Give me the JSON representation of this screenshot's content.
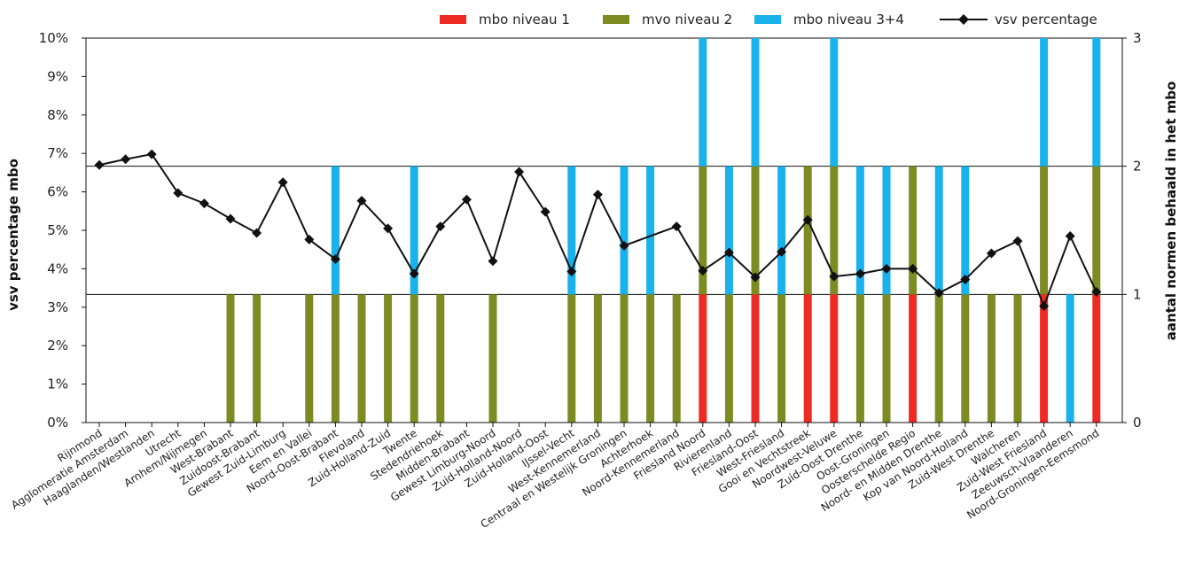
{
  "chart_data": {
    "type": "bar",
    "categories": [
      "Rijnmond",
      "Agglomeratie Amsterdam",
      "Haaglanden/Westlanden",
      "Utrecht",
      "Arnhem/Nijmegen",
      "West-Brabant",
      "Zuidoost-Brabant",
      "Gewest Zuid-Limburg",
      "Eem en Vallei",
      "Noord-Oost-Brabant",
      "Flevoland",
      "Zuid-Holland-Zuid",
      "Twente",
      "Stedendriehoek",
      "Midden-Brabant",
      "Gewest Limburg-Noord",
      "Zuid-Holland-Noord",
      "Zuid-Holland-Oost",
      "IJssel-Vecht",
      "West-Kennemerland",
      "Centraal en Westelijk Groningen",
      "Achterhoek",
      "Noord-Kennemerland",
      "Friesland Noord",
      "Rivierenland",
      "Friesland-Oost",
      "West-Friesland",
      "Gooi en Vechtstreek",
      "Noordwest-Veluwe",
      "Zuid-Oost Drenthe",
      "Oost-Groningen",
      "Oosterschelde Regio",
      "Noord- en Midden Drenthe",
      "Kop van Noord-Holland",
      "Zuid-West Drenthe",
      "Walcheren",
      "Zuid-West Friesland",
      "Zeeuwsch-Vlaanderen",
      "Noord-Groningen-Eemsmond"
    ],
    "series": [
      {
        "name": "mbo niveau 1",
        "axis": "right",
        "color": "#ee2a24",
        "values": [
          0,
          0,
          0,
          0,
          0,
          0,
          0,
          0,
          0,
          0,
          0,
          0,
          0,
          0,
          0,
          0,
          0,
          0,
          0,
          0,
          0,
          0,
          0,
          1,
          0,
          1,
          0,
          1,
          1,
          0,
          0,
          1,
          0,
          0,
          0,
          0,
          1,
          0,
          1
        ]
      },
      {
        "name": "mvo niveau 2",
        "axis": "right",
        "color": "#7d8b22",
        "values": [
          0,
          0,
          0,
          0,
          0,
          1,
          1,
          0,
          1,
          1,
          1,
          1,
          1,
          1,
          0,
          1,
          0,
          0,
          1,
          1,
          1,
          1,
          1,
          1,
          1,
          1,
          1,
          1,
          1,
          1,
          1,
          1,
          1,
          1,
          1,
          1,
          1,
          0,
          1
        ]
      },
      {
        "name": "mbo niveau 3+4",
        "axis": "right",
        "color": "#1ab2ec",
        "values": [
          0,
          0,
          0,
          0,
          0,
          0,
          0,
          0,
          0,
          1,
          0,
          0,
          1,
          0,
          0,
          0,
          0,
          0,
          1,
          0,
          1,
          1,
          0,
          1,
          1,
          1,
          1,
          0,
          1,
          1,
          1,
          0,
          1,
          1,
          0,
          0,
          1,
          1,
          1
        ]
      },
      {
        "name": "vsv percentage",
        "type": "line",
        "axis": "left",
        "color": "#111111",
        "values": [
          6.7,
          6.85,
          6.98,
          5.97,
          5.7,
          5.3,
          4.93,
          6.25,
          4.76,
          4.25,
          5.77,
          5.05,
          3.87,
          5.1,
          5.8,
          4.2,
          6.52,
          5.48,
          3.93,
          5.93,
          4.6,
          null,
          5.1,
          3.95,
          4.42,
          3.78,
          4.44,
          5.27,
          3.8,
          3.87,
          4.0,
          4.0,
          3.37,
          3.72,
          4.4,
          4.72,
          3.03,
          4.85,
          3.4
        ]
      }
    ],
    "y_left": {
      "label": "vsv percentage mbo",
      "ylim": [
        0,
        10
      ],
      "ticks": [
        "0%",
        "1%",
        "2%",
        "3%",
        "4%",
        "5%",
        "6%",
        "7%",
        "8%",
        "9%",
        "10%"
      ]
    },
    "y_right": {
      "label": "aantal normen behaald in het mbo",
      "ylim": [
        0,
        3
      ],
      "ticks": [
        "0",
        "1",
        "2",
        "3"
      ]
    },
    "grid": "horizontal lines at right-axis 1, 2, 3",
    "legend_position": "top-right"
  }
}
